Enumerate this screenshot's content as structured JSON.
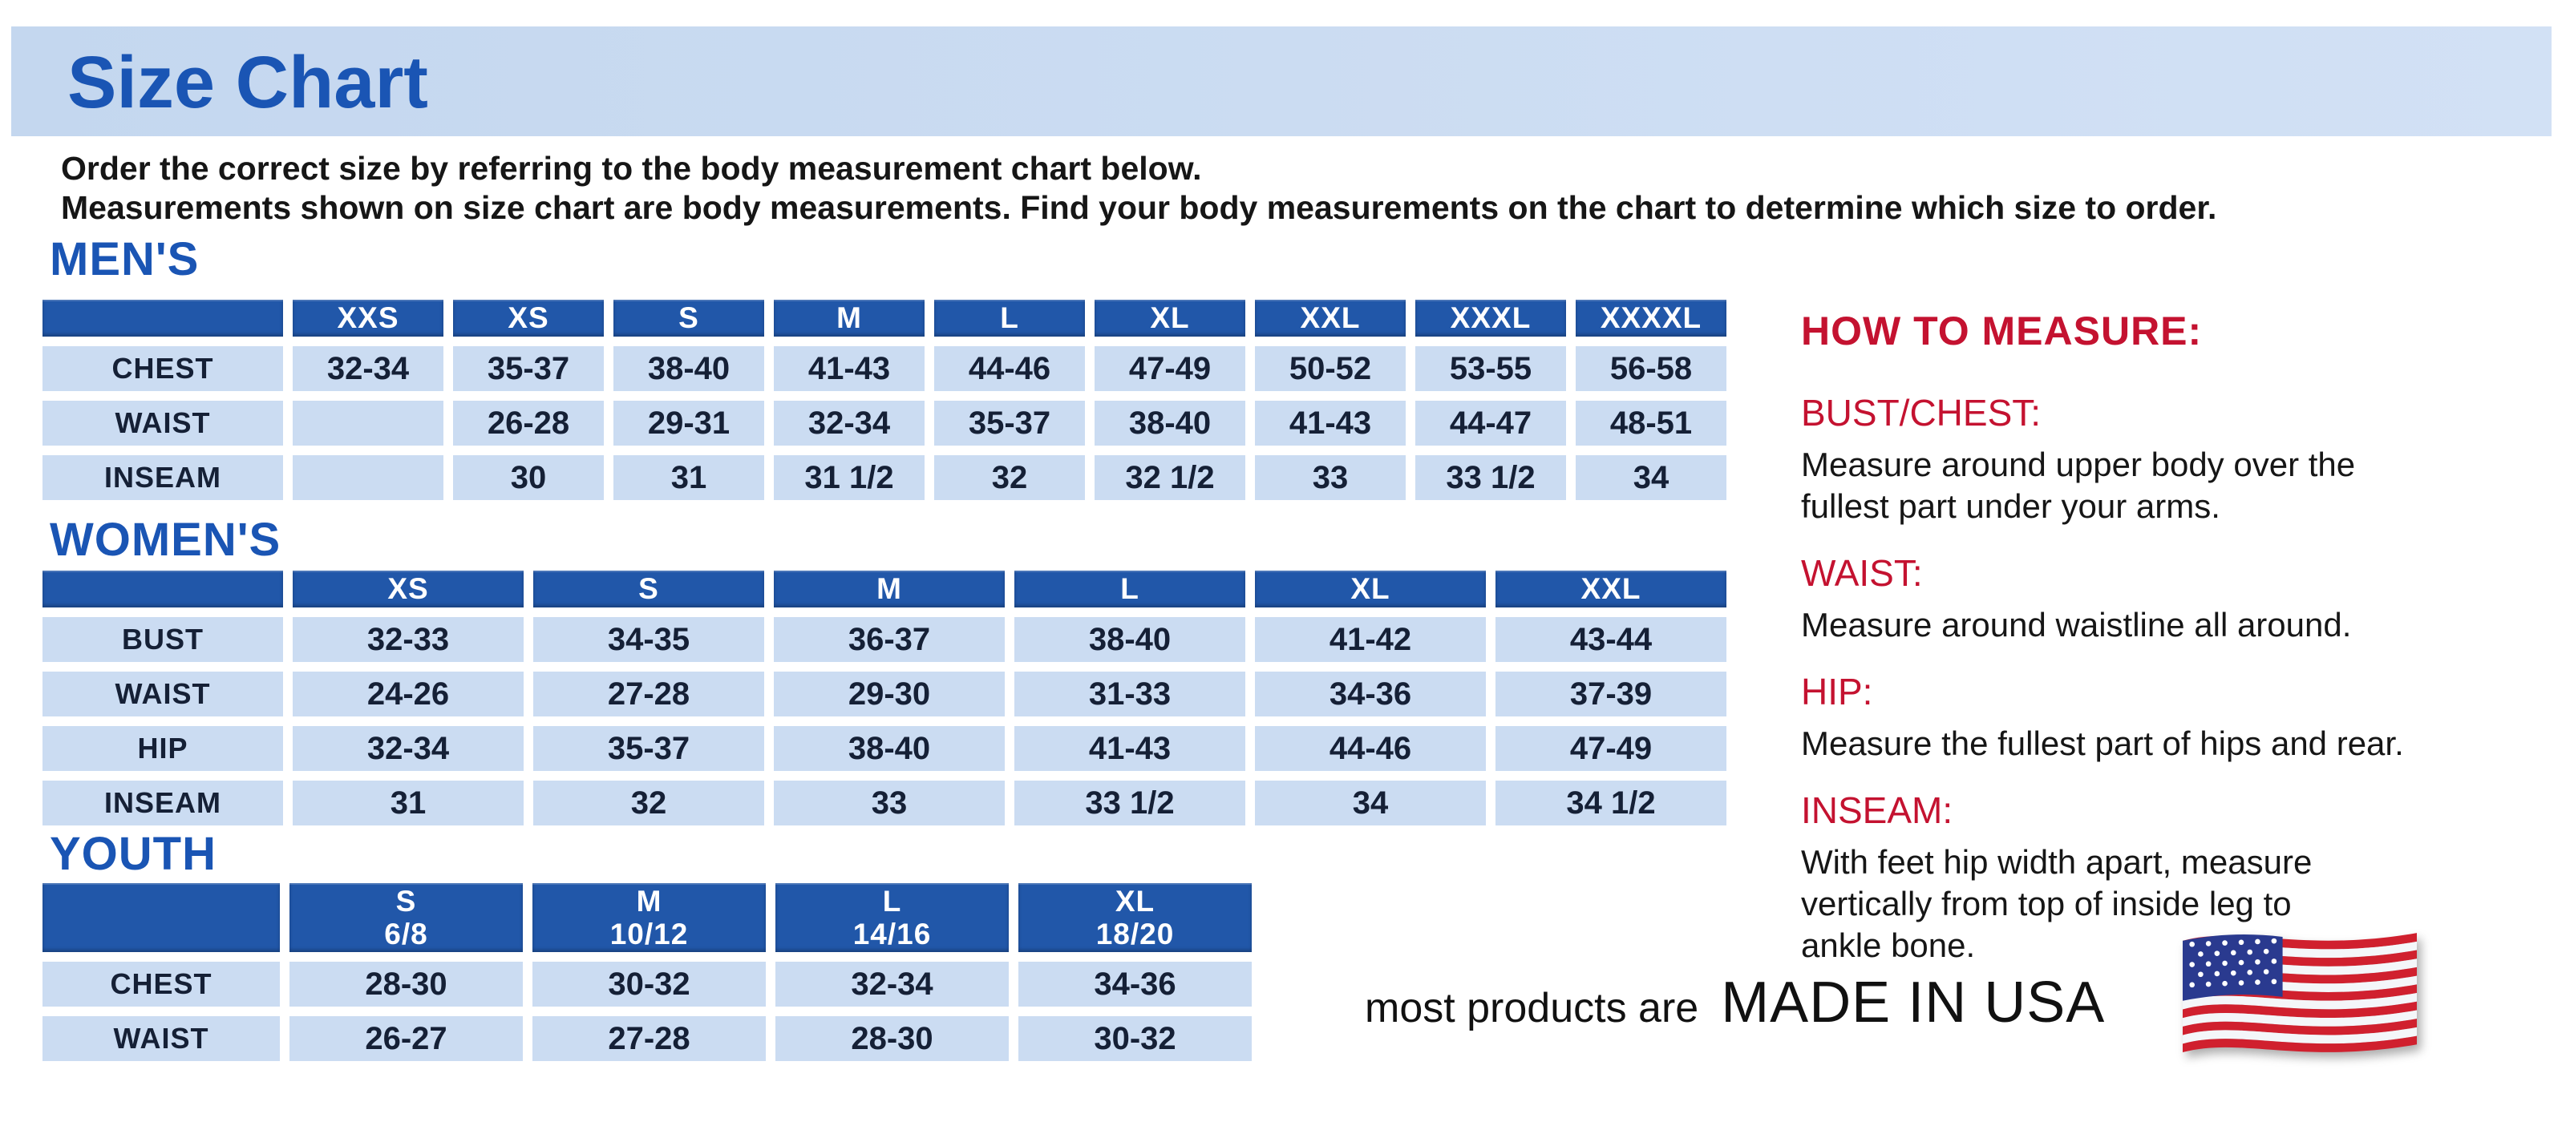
{
  "page": {
    "title": "Size Chart",
    "intro_line1": "Order the correct size by referring to the body measurement chart below.",
    "intro_line2": "Measurements shown on size chart are body measurements.  Find your body measurements on the chart to determine which size to order."
  },
  "colors": {
    "banner_bg": "#c4d7ef",
    "heading_blue": "#1a55b4",
    "header_bg": "#2157a9",
    "cell_bg": "#cbdcf2",
    "cell_text": "#152036",
    "red": "#c41230",
    "flag_red": "#d0202e",
    "flag_blue": "#2a3a8f"
  },
  "tables": {
    "mens": {
      "heading": "MEN'S",
      "columns": [
        "XXS",
        "XS",
        "S",
        "M",
        "L",
        "XL",
        "XXL",
        "XXXL",
        "XXXXL"
      ],
      "rows": [
        {
          "label": "CHEST",
          "values": [
            "32-34",
            "35-37",
            "38-40",
            "41-43",
            "44-46",
            "47-49",
            "50-52",
            "53-55",
            "56-58"
          ]
        },
        {
          "label": "WAIST",
          "values": [
            "",
            "26-28",
            "29-31",
            "32-34",
            "35-37",
            "38-40",
            "41-43",
            "44-47",
            "48-51"
          ]
        },
        {
          "label": "INSEAM",
          "values": [
            "",
            "30",
            "31",
            "31 1/2",
            "32",
            "32 1/2",
            "33",
            "33 1/2",
            "34"
          ]
        }
      ]
    },
    "womens": {
      "heading": "WOMEN'S",
      "columns": [
        "XS",
        "S",
        "M",
        "L",
        "XL",
        "XXL"
      ],
      "rows": [
        {
          "label": "BUST",
          "values": [
            "32-33",
            "34-35",
            "36-37",
            "38-40",
            "41-42",
            "43-44"
          ]
        },
        {
          "label": "WAIST",
          "values": [
            "24-26",
            "27-28",
            "29-30",
            "31-33",
            "34-36",
            "37-39"
          ]
        },
        {
          "label": "HIP",
          "values": [
            "32-34",
            "35-37",
            "38-40",
            "41-43",
            "44-46",
            "47-49"
          ]
        },
        {
          "label": "INSEAM",
          "values": [
            "31",
            "32",
            "33",
            "33 1/2",
            "34",
            "34 1/2"
          ]
        }
      ]
    },
    "youth": {
      "heading": "YOUTH",
      "columns": [
        {
          "size": "S",
          "range": "6/8"
        },
        {
          "size": "M",
          "range": "10/12"
        },
        {
          "size": "L",
          "range": "14/16"
        },
        {
          "size": "XL",
          "range": "18/20"
        }
      ],
      "rows": [
        {
          "label": "CHEST",
          "values": [
            "28-30",
            "30-32",
            "32-34",
            "34-36"
          ]
        },
        {
          "label": "WAIST",
          "values": [
            "26-27",
            "27-28",
            "28-30",
            "30-32"
          ]
        }
      ]
    }
  },
  "how_to_measure": {
    "heading": "HOW TO MEASURE:",
    "items": [
      {
        "term": "BUST/CHEST:",
        "lines": [
          "Measure around upper body over the",
          "fullest part under your arms."
        ]
      },
      {
        "term": "WAIST:",
        "lines": [
          "Measure around waistline all around."
        ]
      },
      {
        "term": "HIP:",
        "lines": [
          "Measure the fullest part of hips and rear."
        ]
      },
      {
        "term": "INSEAM:",
        "lines": [
          "With feet hip width apart, measure",
          "vertically from top of inside leg to",
          "ankle bone."
        ]
      }
    ]
  },
  "footer": {
    "prefix": "most products are",
    "emphasis": "MADE IN USA",
    "flag_icon": "us-flag-icon"
  }
}
